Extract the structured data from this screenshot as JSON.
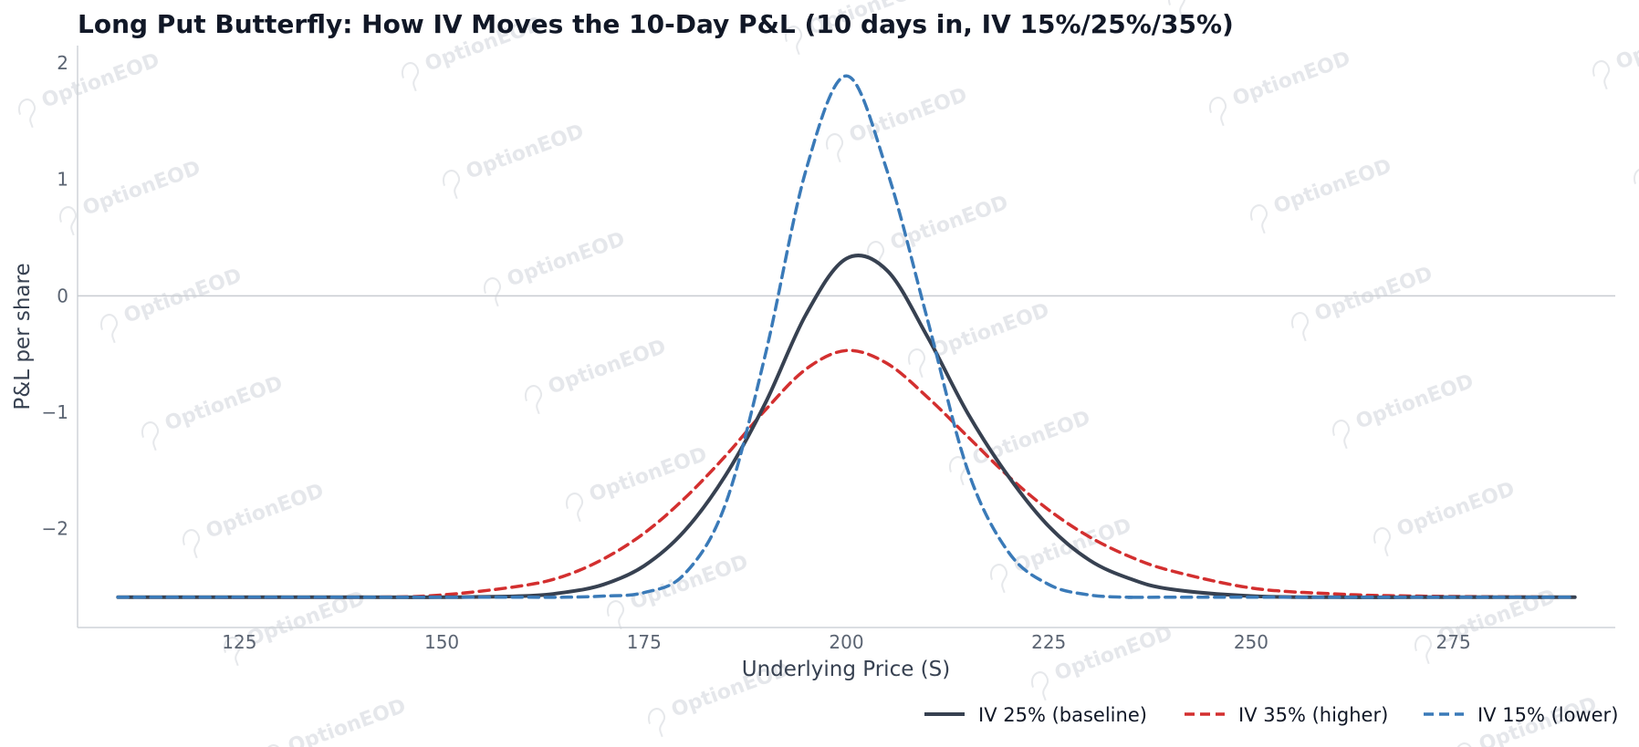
{
  "watermark": "OptionEOD",
  "chart_data": {
    "type": "line",
    "title": "Long Put Butterfly: How IV Moves the 10-Day P&L (10 days in, IV 15%/25%/35%)",
    "xlabel": "Underlying Price (S)",
    "ylabel": "P&L per share",
    "xlim": [
      105,
      295
    ],
    "ylim": [
      -2.85,
      2.15
    ],
    "xticks": [
      125,
      150,
      175,
      200,
      225,
      250,
      275
    ],
    "yticks": [
      -2,
      -1,
      0,
      1,
      2
    ],
    "ytick_labels": [
      "−2",
      "−1",
      "0",
      "1",
      "2"
    ],
    "zero_line": true,
    "grid": false,
    "legend_position": "bottom-right",
    "series": [
      {
        "name": "IV 25% (baseline)",
        "color": "#374151",
        "style": "solid",
        "x": [
          110,
          140,
          150,
          160,
          165,
          170,
          175,
          180,
          185,
          190,
          195,
          200,
          205,
          210,
          215,
          220,
          225,
          230,
          235,
          240,
          250,
          260,
          270,
          290
        ],
        "y": [
          -2.59,
          -2.59,
          -2.59,
          -2.58,
          -2.55,
          -2.48,
          -2.32,
          -2.02,
          -1.55,
          -0.92,
          -0.16,
          0.32,
          0.22,
          -0.35,
          -1.01,
          -1.55,
          -1.98,
          -2.27,
          -2.43,
          -2.52,
          -2.58,
          -2.59,
          -2.59,
          -2.59
        ]
      },
      {
        "name": "IV 35% (higher)",
        "color": "#d32f2f",
        "style": "dashed",
        "x": [
          110,
          140,
          150,
          160,
          165,
          170,
          175,
          180,
          185,
          190,
          195,
          200,
          205,
          210,
          215,
          220,
          225,
          230,
          235,
          240,
          250,
          260,
          270,
          290
        ],
        "y": [
          -2.59,
          -2.59,
          -2.57,
          -2.49,
          -2.41,
          -2.26,
          -2.04,
          -1.74,
          -1.38,
          -0.98,
          -0.63,
          -0.47,
          -0.58,
          -0.87,
          -1.21,
          -1.55,
          -1.84,
          -2.07,
          -2.24,
          -2.36,
          -2.51,
          -2.56,
          -2.58,
          -2.59
        ]
      },
      {
        "name": "IV 15% (lower)",
        "color": "#3a7ab8",
        "style": "dashed",
        "x": [
          110,
          150,
          160,
          165,
          170,
          175,
          180,
          185,
          190,
          195,
          200,
          205,
          210,
          215,
          220,
          225,
          230,
          235,
          240,
          290
        ],
        "y": [
          -2.59,
          -2.59,
          -2.59,
          -2.59,
          -2.58,
          -2.55,
          -2.39,
          -1.8,
          -0.5,
          1.08,
          1.89,
          1.08,
          -0.2,
          -1.5,
          -2.2,
          -2.48,
          -2.57,
          -2.59,
          -2.59,
          -2.59
        ]
      }
    ]
  }
}
